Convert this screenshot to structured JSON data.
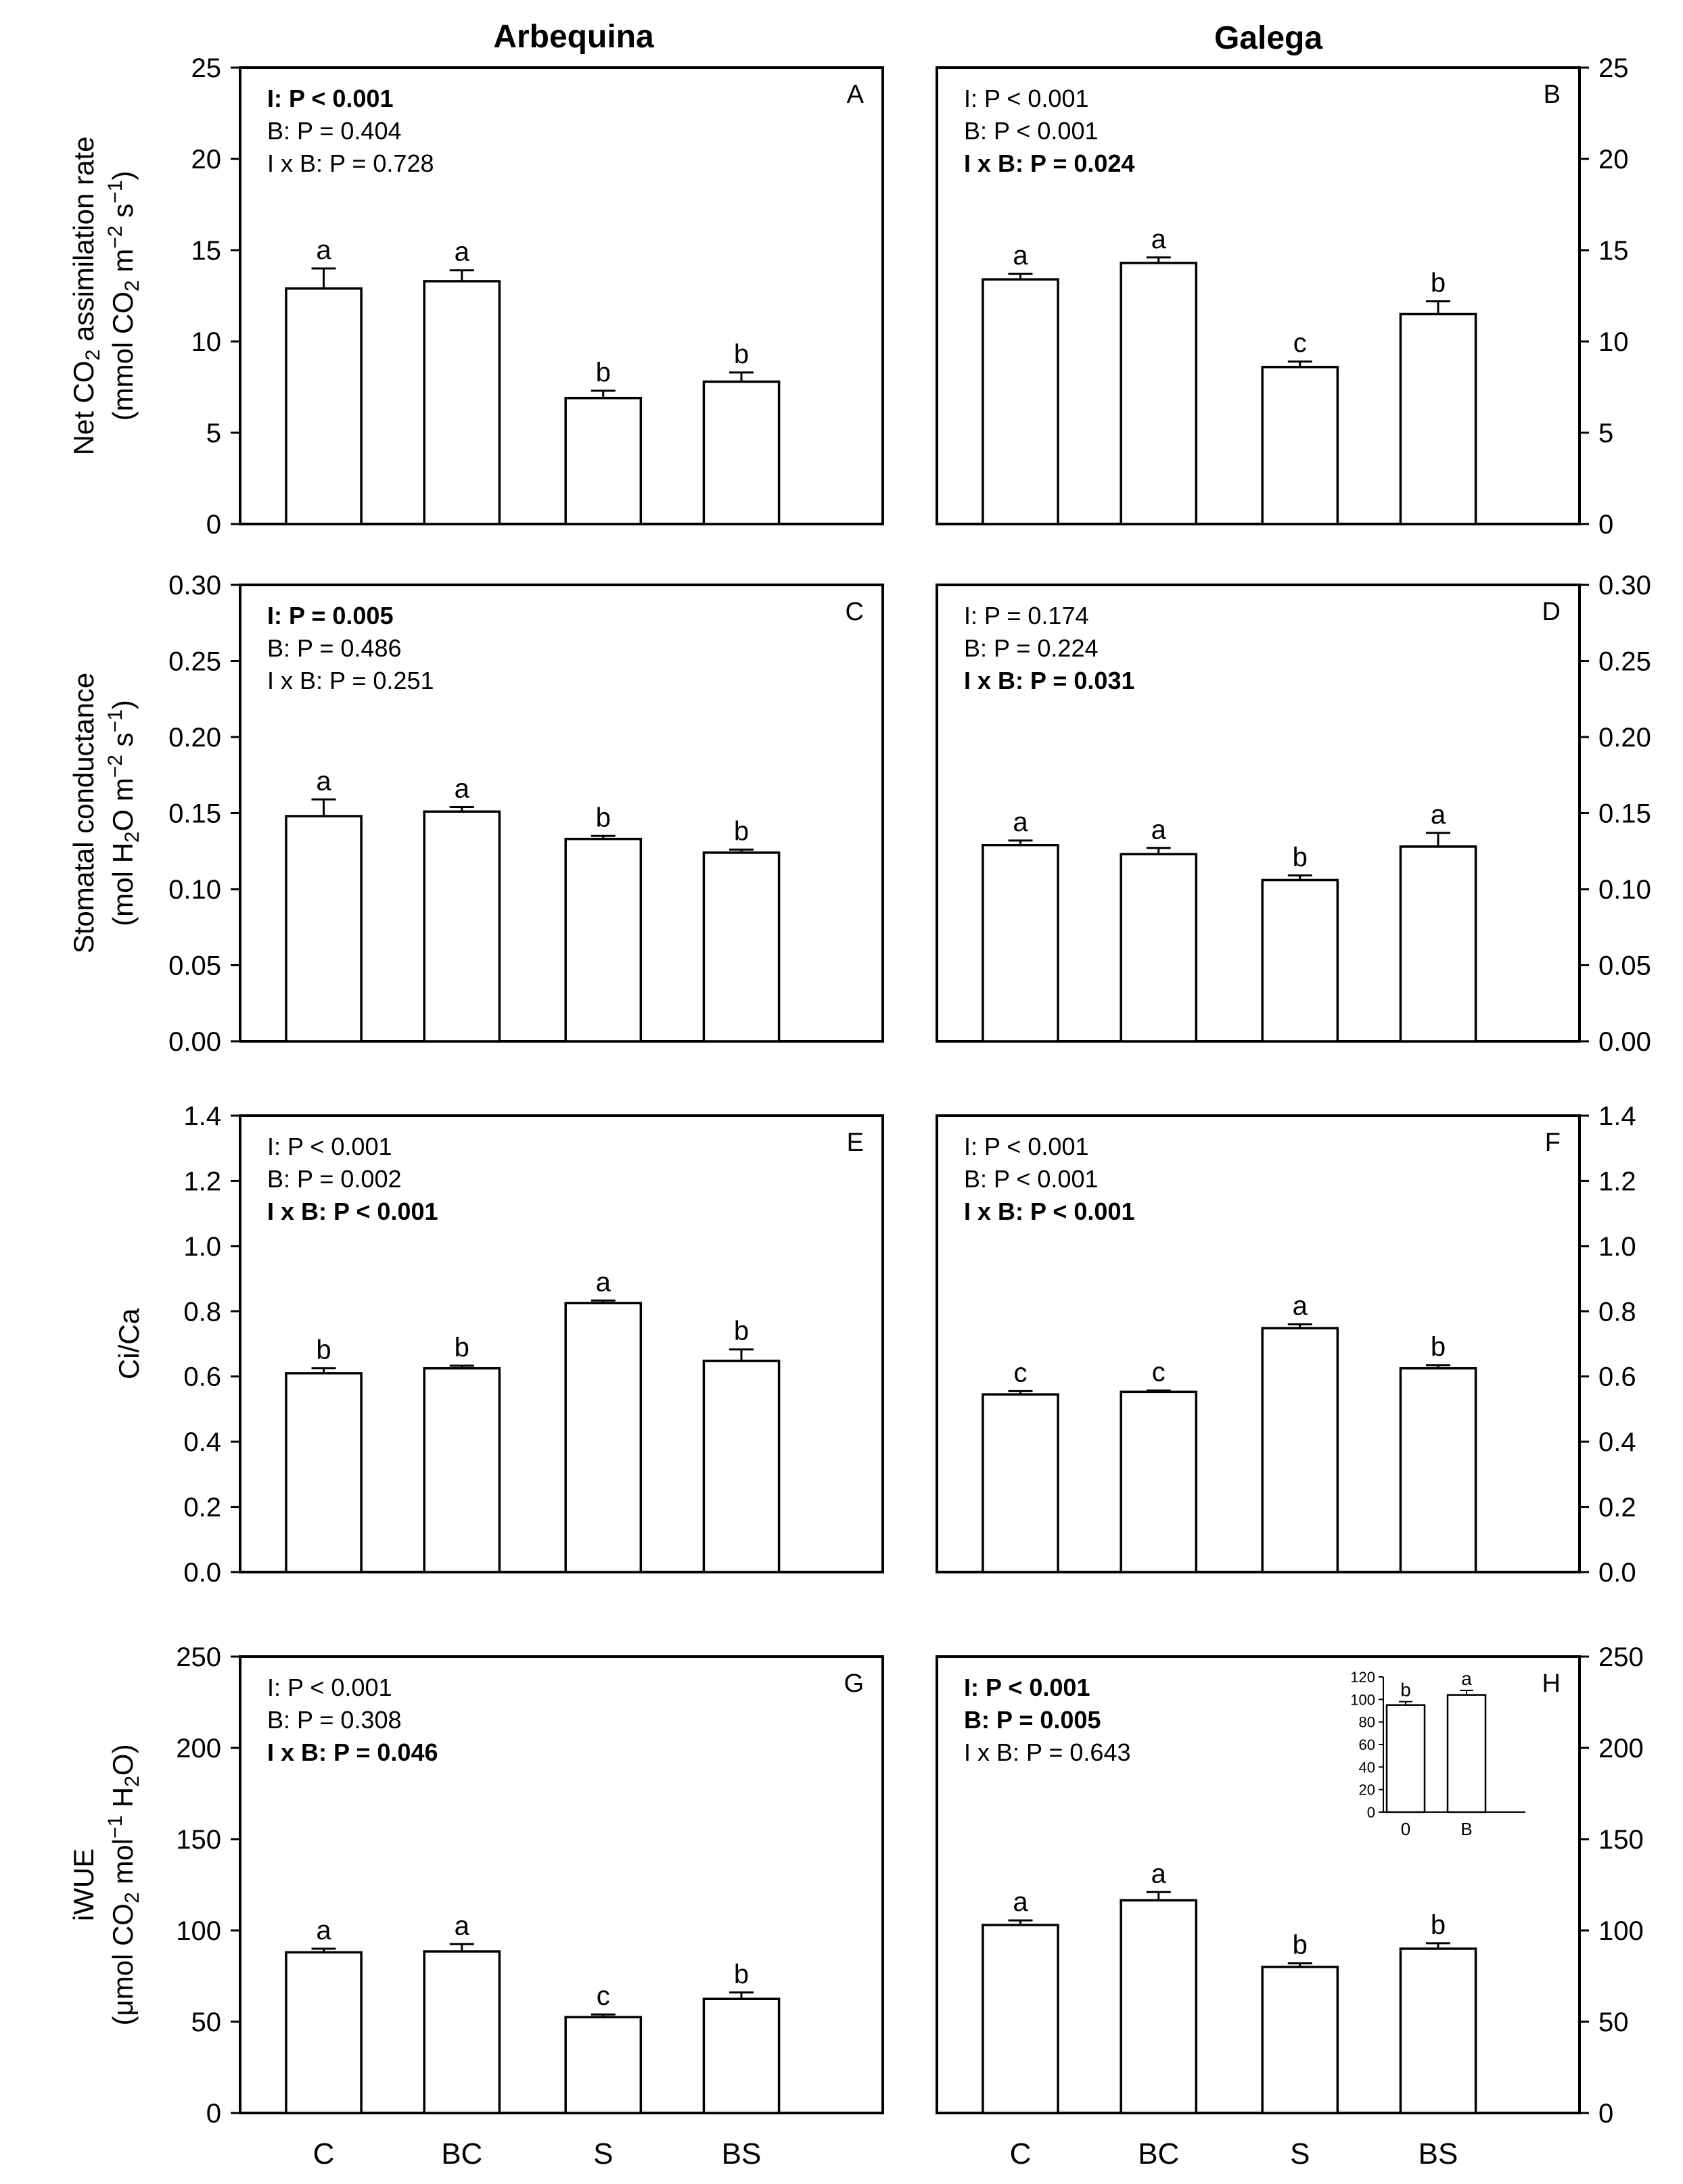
{
  "columns": [
    "Arbequina",
    "Galega"
  ],
  "categories": [
    "C",
    "BC",
    "S",
    "BS"
  ],
  "chart_data": [
    {
      "type": "bar",
      "panel": "A",
      "column": "Arbequina",
      "ylabel_lines": [
        [
          {
            "t": "Net CO"
          },
          {
            "t": "2",
            "sub": true
          },
          {
            "t": " assimilation rate"
          }
        ],
        [
          {
            "t": "(mmol CO"
          },
          {
            "t": "2",
            "sub": true
          },
          {
            "t": " m"
          },
          {
            "t": "−2",
            "sup": true
          },
          {
            "t": " s"
          },
          {
            "t": "−1",
            "sup": true
          },
          {
            "t": ")"
          }
        ]
      ],
      "ylim": [
        0,
        25
      ],
      "yticks": [
        0,
        5,
        10,
        15,
        20,
        25
      ],
      "tick_labels": [
        "0",
        "5",
        "10",
        "15",
        "20",
        "25"
      ],
      "values": [
        12.9,
        13.3,
        6.9,
        7.8
      ],
      "errors": [
        1.1,
        0.6,
        0.4,
        0.5
      ],
      "letters": [
        "a",
        "a",
        "b",
        "b"
      ],
      "stats": [
        {
          "text": "I: P < 0.001",
          "bold": true
        },
        {
          "text": "B: P = 0.404",
          "bold": false
        },
        {
          "text": "I x B: P = 0.728",
          "bold": false
        }
      ]
    },
    {
      "type": "bar",
      "panel": "B",
      "column": "Galega",
      "ylim": [
        0,
        25
      ],
      "yticks": [
        0,
        5,
        10,
        15,
        20,
        25
      ],
      "tick_labels": [
        "0",
        "5",
        "10",
        "15",
        "20",
        "25"
      ],
      "values": [
        13.4,
        14.3,
        8.6,
        11.5
      ],
      "errors": [
        0.3,
        0.3,
        0.3,
        0.7
      ],
      "letters": [
        "a",
        "a",
        "c",
        "b"
      ],
      "stats": [
        {
          "text": "I: P < 0.001",
          "bold": false
        },
        {
          "text": "B: P < 0.001",
          "bold": false
        },
        {
          "text": "I x B: P = 0.024",
          "bold": true
        }
      ]
    },
    {
      "type": "bar",
      "panel": "C",
      "column": "Arbequina",
      "ylabel_lines": [
        [
          {
            "t": "Stomatal conductance"
          }
        ],
        [
          {
            "t": "(mol H"
          },
          {
            "t": "2",
            "sub": true
          },
          {
            "t": "O m"
          },
          {
            "t": "−2",
            "sup": true
          },
          {
            "t": " s"
          },
          {
            "t": "−1",
            "sup": true
          },
          {
            "t": ")"
          }
        ]
      ],
      "ylim": [
        0,
        0.3
      ],
      "yticks": [
        0,
        0.05,
        0.1,
        0.15,
        0.2,
        0.25,
        0.3
      ],
      "tick_labels": [
        "0.00",
        "0.05",
        "0.10",
        "0.15",
        "0.20",
        "0.25",
        "0.30"
      ],
      "values": [
        0.148,
        0.151,
        0.133,
        0.124
      ],
      "errors": [
        0.011,
        0.003,
        0.002,
        0.002
      ],
      "letters": [
        "a",
        "a",
        "b",
        "b"
      ],
      "stats": [
        {
          "text": "I: P = 0.005",
          "bold": true
        },
        {
          "text": "B: P = 0.486",
          "bold": false
        },
        {
          "text": "I x B: P = 0.251",
          "bold": false
        }
      ]
    },
    {
      "type": "bar",
      "panel": "D",
      "column": "Galega",
      "ylim": [
        0,
        0.3
      ],
      "yticks": [
        0,
        0.05,
        0.1,
        0.15,
        0.2,
        0.25,
        0.3
      ],
      "tick_labels": [
        "0.00",
        "0.05",
        "0.10",
        "0.15",
        "0.20",
        "0.25",
        "0.30"
      ],
      "values": [
        0.129,
        0.123,
        0.106,
        0.128
      ],
      "errors": [
        0.003,
        0.004,
        0.003,
        0.009
      ],
      "letters": [
        "a",
        "a",
        "b",
        "a"
      ],
      "stats": [
        {
          "text": "I: P = 0.174",
          "bold": false
        },
        {
          "text": "B: P = 0.224",
          "bold": false
        },
        {
          "text": "I x B: P = 0.031",
          "bold": true
        }
      ]
    },
    {
      "type": "bar",
      "panel": "E",
      "column": "Arbequina",
      "ylabel_lines": [
        [
          {
            "t": "Ci/Ca"
          }
        ]
      ],
      "ylim": [
        0,
        1.4
      ],
      "yticks": [
        0,
        0.2,
        0.4,
        0.6,
        0.8,
        1.0,
        1.2,
        1.4
      ],
      "tick_labels": [
        "0.0",
        "0.2",
        "0.4",
        "0.6",
        "0.8",
        "1.0",
        "1.2",
        "1.4"
      ],
      "values": [
        0.61,
        0.625,
        0.825,
        0.648
      ],
      "errors": [
        0.015,
        0.008,
        0.008,
        0.035
      ],
      "letters": [
        "b",
        "b",
        "a",
        "b"
      ],
      "stats": [
        {
          "text": "I: P < 0.001",
          "bold": false
        },
        {
          "text": "B: P = 0.002",
          "bold": false
        },
        {
          "text": "I x B: P < 0.001",
          "bold": true
        }
      ]
    },
    {
      "type": "bar",
      "panel": "F",
      "column": "Galega",
      "ylim": [
        0,
        1.4
      ],
      "yticks": [
        0,
        0.2,
        0.4,
        0.6,
        0.8,
        1.0,
        1.2,
        1.4
      ],
      "tick_labels": [
        "0.0",
        "0.2",
        "0.4",
        "0.6",
        "0.8",
        "1.0",
        "1.2",
        "1.4"
      ],
      "values": [
        0.545,
        0.553,
        0.748,
        0.625
      ],
      "errors": [
        0.01,
        0.004,
        0.012,
        0.01
      ],
      "letters": [
        "c",
        "c",
        "a",
        "b"
      ],
      "stats": [
        {
          "text": "I: P < 0.001",
          "bold": false
        },
        {
          "text": "B: P < 0.001",
          "bold": false
        },
        {
          "text": "I x B: P < 0.001",
          "bold": true
        }
      ]
    },
    {
      "type": "bar",
      "panel": "G",
      "column": "Arbequina",
      "ylabel_lines": [
        [
          {
            "t": "iWUE"
          }
        ],
        [
          {
            "t": "(μmol CO"
          },
          {
            "t": "2",
            "sub": true
          },
          {
            "t": " mol"
          },
          {
            "t": "−1",
            "sup": true
          },
          {
            "t": " H"
          },
          {
            "t": "2",
            "sub": true
          },
          {
            "t": "O)"
          }
        ]
      ],
      "ylim": [
        0,
        250
      ],
      "yticks": [
        0,
        50,
        100,
        150,
        200,
        250
      ],
      "tick_labels": [
        "0",
        "50",
        "100",
        "150",
        "200",
        "250"
      ],
      "values": [
        88,
        88.5,
        52.5,
        62.5
      ],
      "errors": [
        2,
        4,
        1.5,
        3.5
      ],
      "letters": [
        "a",
        "a",
        "c",
        "b"
      ],
      "stats": [
        {
          "text": "I: P < 0.001",
          "bold": false
        },
        {
          "text": "B: P = 0.308",
          "bold": false
        },
        {
          "text": "I x B: P = 0.046",
          "bold": true
        }
      ]
    },
    {
      "type": "bar",
      "panel": "H",
      "column": "Galega",
      "ylim": [
        0,
        250
      ],
      "yticks": [
        0,
        50,
        100,
        150,
        200,
        250
      ],
      "tick_labels": [
        "0",
        "50",
        "100",
        "150",
        "200",
        "250"
      ],
      "values": [
        103,
        116.5,
        80,
        90
      ],
      "errors": [
        2.5,
        4.5,
        2,
        3
      ],
      "letters": [
        "a",
        "a",
        "b",
        "b"
      ],
      "stats": [
        {
          "text": "I: P < 0.001",
          "bold": true
        },
        {
          "text": "B: P = 0.005",
          "bold": true
        },
        {
          "text": "I x B: P = 0.643",
          "bold": false
        }
      ],
      "inset": {
        "type": "bar",
        "categories": [
          "0",
          "B"
        ],
        "values": [
          95,
          104
        ],
        "errors": [
          3,
          4
        ],
        "letters": [
          "b",
          "a"
        ],
        "ylim": [
          0,
          120
        ],
        "yticks": [
          0,
          20,
          40,
          60,
          80,
          100,
          120
        ],
        "tick_labels": [
          "0",
          "20",
          "40",
          "60",
          "80",
          "100",
          "120"
        ]
      }
    }
  ]
}
